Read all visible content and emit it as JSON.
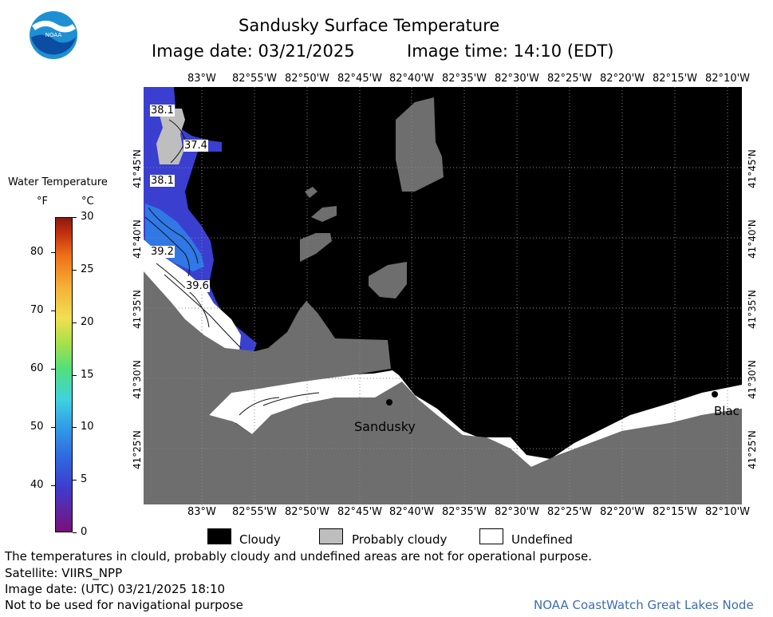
{
  "title": "Sandusky Surface Temperature",
  "image_date": "Image date: 03/21/2025",
  "image_time": "Image time: 14:10 (EDT)",
  "logo_text": "NOAA",
  "colorbar": {
    "title": "Water Temperature",
    "unit_f": "°F",
    "unit_c": "°C",
    "f_ticks": [
      "80",
      "70",
      "60",
      "50",
      "40"
    ],
    "c_ticks": [
      "30",
      "25",
      "20",
      "15",
      "10",
      "5",
      "0"
    ]
  },
  "longitudes": [
    "83°W",
    "82°55'W",
    "82°50'W",
    "82°45'W",
    "82°40'W",
    "82°35'W",
    "82°30'W",
    "82°25'W",
    "82°20'W",
    "82°15'W",
    "82°10'W"
  ],
  "latitudes": [
    "41°45'N",
    "41°40'N",
    "41°35'N",
    "41°30'N",
    "41°25'N"
  ],
  "contour_labels": [
    "38.1",
    "37.4",
    "38.1",
    "39.2",
    "39.6"
  ],
  "places": {
    "sandusky": "Sandusky",
    "bay_view": "Blac"
  },
  "legend": {
    "cloudy": "Cloudy",
    "probably_cloudy": "Probably cloudy",
    "undefined": "Undefined"
  },
  "info": {
    "note": "The temperatures in clould, probably cloudy and undefined areas are not for operational purpose.",
    "satellite": "Satellite: VIIRS_NPP",
    "utc_date": "Image date: (UTC) 03/21/2025  18:10",
    "nav_warning": "Not to be used for navigational purpose",
    "node": "NOAA CoastWatch Great Lakes Node"
  },
  "colors": {
    "cloudy": "#000000",
    "probably_cloudy": "#bebebe",
    "undefined": "#ffffff",
    "land": "#6e6e6e",
    "water_cold": "#3a3fd0",
    "water_warm": "#2a6ee6",
    "node_text": "#3d6db5"
  }
}
